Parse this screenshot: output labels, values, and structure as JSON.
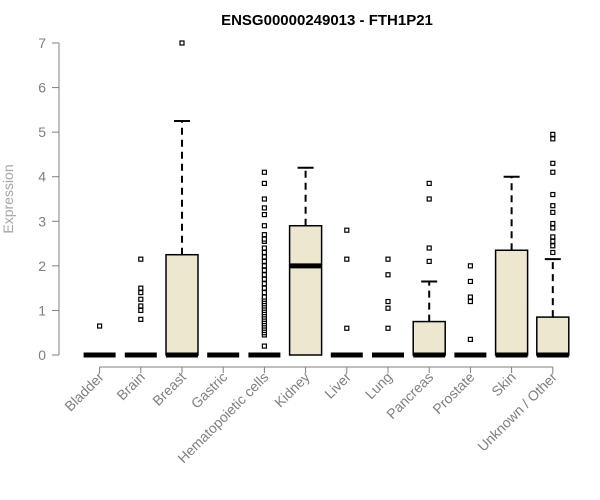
{
  "chart_data": {
    "type": "box",
    "title": "ENSG00000249013 - FTH1P21",
    "xlabel": "",
    "ylabel": "Expression",
    "ylim": [
      0,
      7
    ],
    "yticks": [
      0,
      1,
      2,
      3,
      4,
      5,
      6,
      7
    ],
    "grid": false,
    "box_fill": "#ede7cf",
    "categories": [
      "Bladder",
      "Brain",
      "Breast",
      "Gastric",
      "Hematopoietic cells",
      "Kidney",
      "Liver",
      "Lung",
      "Pancreas",
      "Prostate",
      "Skin",
      "Unknown / Other"
    ],
    "boxes": [
      {
        "q1": 0,
        "median": 0,
        "q3": 0,
        "whisker_low": 0,
        "whisker_high": 0,
        "outliers": [
          0.65
        ]
      },
      {
        "q1": 0,
        "median": 0,
        "q3": 0,
        "whisker_low": 0,
        "whisker_high": 0,
        "outliers": [
          0.8,
          1.0,
          1.1,
          1.25,
          1.4,
          1.5,
          2.15
        ]
      },
      {
        "q1": 0,
        "median": 0,
        "q3": 2.25,
        "whisker_low": 0,
        "whisker_high": 5.25,
        "outliers": [
          7.0
        ]
      },
      {
        "q1": 0,
        "median": 0,
        "q3": 0,
        "whisker_low": 0,
        "whisker_high": 0,
        "outliers": []
      },
      {
        "q1": 0,
        "median": 0,
        "q3": 0,
        "whisker_low": 0,
        "whisker_high": 0,
        "outliers": [
          0.2,
          0.45,
          0.5,
          0.55,
          0.6,
          0.65,
          0.7,
          0.75,
          0.8,
          0.85,
          0.9,
          0.95,
          1.0,
          1.05,
          1.1,
          1.15,
          1.2,
          1.25,
          1.3,
          1.4,
          1.5,
          1.6,
          1.7,
          1.8,
          1.9,
          2.0,
          2.1,
          2.2,
          2.3,
          2.4,
          2.55,
          2.6,
          2.7,
          2.9,
          3.15,
          3.3,
          3.5,
          3.85,
          4.1
        ]
      },
      {
        "q1": 0,
        "median": 2.0,
        "q3": 2.9,
        "whisker_low": 0,
        "whisker_high": 4.2,
        "outliers": []
      },
      {
        "q1": 0,
        "median": 0,
        "q3": 0,
        "whisker_low": 0,
        "whisker_high": 0,
        "outliers": [
          0.6,
          2.15,
          2.8
        ]
      },
      {
        "q1": 0,
        "median": 0,
        "q3": 0,
        "whisker_low": 0,
        "whisker_high": 0,
        "outliers": [
          0.6,
          1.05,
          1.2,
          1.8,
          2.15
        ]
      },
      {
        "q1": 0,
        "median": 0,
        "q3": 0.75,
        "whisker_low": 0,
        "whisker_high": 1.65,
        "outliers": [
          2.1,
          2.4,
          3.5,
          3.85
        ]
      },
      {
        "q1": 0,
        "median": 0,
        "q3": 0,
        "whisker_low": 0,
        "whisker_high": 0,
        "outliers": [
          0.35,
          1.2,
          1.3,
          1.65,
          2.0
        ]
      },
      {
        "q1": 0,
        "median": 0,
        "q3": 2.35,
        "whisker_low": 0,
        "whisker_high": 4.0,
        "outliers": []
      },
      {
        "q1": 0,
        "median": 0,
        "q3": 0.85,
        "whisker_low": 0,
        "whisker_high": 2.15,
        "outliers": [
          2.3,
          2.45,
          2.55,
          2.65,
          2.85,
          2.95,
          3.2,
          3.35,
          3.6,
          4.1,
          4.3,
          4.85,
          4.95
        ]
      }
    ]
  }
}
